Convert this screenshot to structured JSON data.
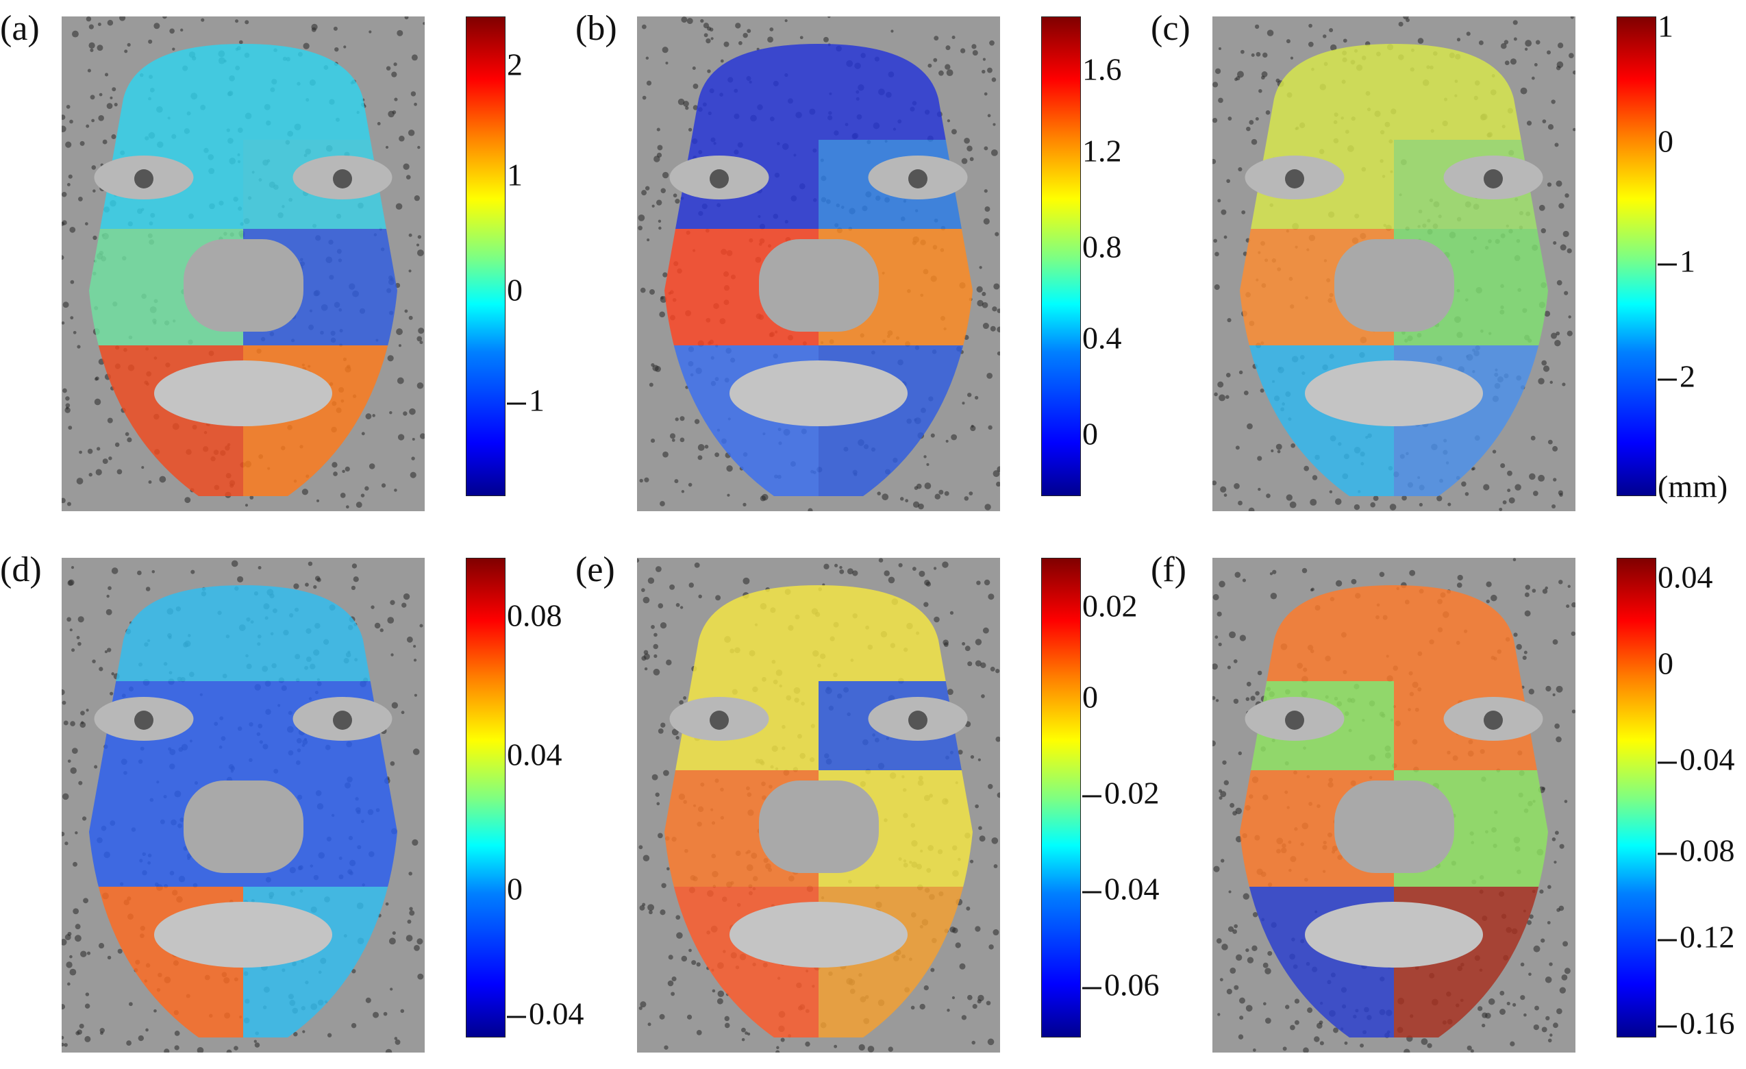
{
  "panels": [
    {
      "label": "(a)",
      "ticks": [
        "2",
        "1",
        "0",
        "1"
      ],
      "dashed": [
        false,
        false,
        false,
        true
      ],
      "tick_pos": [
        0.1,
        0.33,
        0.57,
        0.8
      ],
      "regions": [
        "#2fd3ee",
        "#2fd3ee",
        "#3bd1e6",
        "#6fe0a0",
        "#2f5de0",
        "#f04a1f",
        "#ff7a1a"
      ]
    },
    {
      "label": "(b)",
      "ticks": [
        "1.6",
        "1.2",
        "0.8",
        "0.4",
        "0"
      ],
      "dashed": [
        false,
        false,
        false,
        false,
        false
      ],
      "tick_pos": [
        0.11,
        0.28,
        0.48,
        0.67,
        0.87
      ],
      "regions": [
        "#2535d8",
        "#2535d8",
        "#2b7de8",
        "#ff4422",
        "#ff8a20",
        "#3a6ff0",
        "#2f5de0"
      ]
    },
    {
      "label": "(c)",
      "ticks": [
        "1",
        "0",
        "1",
        "2",
        "(mm)"
      ],
      "dashed": [
        false,
        false,
        true,
        true,
        false
      ],
      "tick_pos": [
        0.02,
        0.26,
        0.51,
        0.75,
        0.98
      ],
      "regions": [
        "#d8e84a",
        "#d8e84a",
        "#9fe36a",
        "#ff8c30",
        "#7fe070",
        "#2fb8f0",
        "#4a90ec"
      ]
    },
    {
      "label": "(d)",
      "ticks": [
        "0.08",
        "0.04",
        "0",
        "0.04"
      ],
      "dashed": [
        false,
        false,
        false,
        true
      ],
      "tick_pos": [
        0.12,
        0.41,
        0.69,
        0.95
      ],
      "regions": [
        "#2fbdf0",
        "#2a5ef0",
        "#2a5ef0",
        "#2a5ef0",
        "#2a5ef0",
        "#ff6a20",
        "#2fbdf0"
      ]
    },
    {
      "label": "(e)",
      "ticks": [
        "0.02",
        "0",
        "0.02",
        "0.04",
        "0.06"
      ],
      "dashed": [
        false,
        false,
        true,
        true,
        true
      ],
      "tick_pos": [
        0.1,
        0.29,
        0.49,
        0.69,
        0.89
      ],
      "regions": [
        "#f5e642",
        "#f5e642",
        "#2f5de0",
        "#ff7a2a",
        "#f5e642",
        "#ff5a2a",
        "#f5a030"
      ]
    },
    {
      "label": "(f)",
      "ticks": [
        "0.04",
        "0",
        "0.04",
        "0.08",
        "0.12",
        "0.16"
      ],
      "dashed": [
        false,
        false,
        true,
        true,
        true,
        true
      ],
      "tick_pos": [
        0.04,
        0.22,
        0.42,
        0.61,
        0.79,
        0.97
      ],
      "regions": [
        "#ff7a2a",
        "#8fe460",
        "#ff7a2a",
        "#ff7a2a",
        "#8fe460",
        "#2a3ed0",
        "#a8301e"
      ]
    }
  ]
}
